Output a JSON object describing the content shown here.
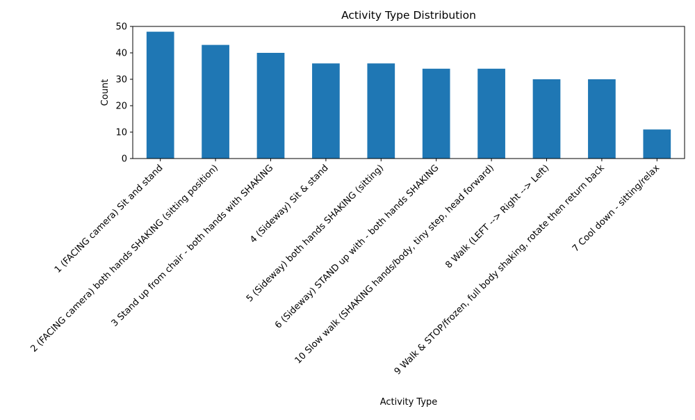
{
  "chart_data": {
    "type": "bar",
    "title": "Activity Type Distribution",
    "xlabel": "Activity Type",
    "ylabel": "Count",
    "ylim": [
      0,
      50
    ],
    "yticks": [
      0,
      10,
      20,
      30,
      40,
      50
    ],
    "grid": false,
    "legend": "none",
    "bar_color": "#1f77b4",
    "categories": [
      "1 (FACING camera) Sit and stand",
      "2 (FACING camera) both hands SHAKING (sitting position)",
      "3 Stand up from chair - both hands with SHAKING",
      "4 (Sideway) Sit & stand",
      "5 (Sideway) both hands SHAKING (sitting)",
      "6 (Sideway) STAND up with - both hands SHAKING",
      "10 Slow walk (SHAKING hands/body, tiny step, head forward)",
      "8 Walk (LEFT --> Right --> Left)",
      "9 Walk & STOP/frozen, full body shaking, rotate then return back",
      "7 Cool down - sitting/relax"
    ],
    "values": [
      48,
      43,
      40,
      36,
      36,
      34,
      34,
      30,
      30,
      11
    ]
  }
}
